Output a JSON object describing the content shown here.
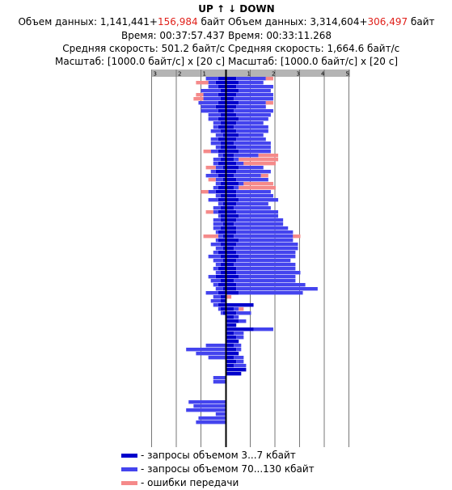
{
  "header": {
    "up_label": "UP",
    "up_arrow": "↑",
    "down_arrow": "↓",
    "down_label": "DOWN",
    "up_volume_label": "Объем данных:",
    "up_volume_value": "1,141,441+",
    "up_volume_extra": "156,984",
    "up_volume_unit": "байт",
    "down_volume_label": "Объем данных:",
    "down_volume_value": "3,314,604+",
    "down_volume_extra": "306,497",
    "down_volume_unit": "байт",
    "up_time": "Время: 00:37:57.437",
    "down_time": "Время: 00:33:11.268",
    "up_speed": "Средняя скорость: 501.2 байт/с",
    "down_speed": "Средняя скорость: 1,664.6 байт/с",
    "up_scale": "Масштаб: [1000.0 байт/с] x [20 с]",
    "down_scale": "Масштаб: [1000.0 байт/с] x [20 с]"
  },
  "legend": [
    {
      "label": "- запросы объемом 3...7 кбайт",
      "color": "#0000cc"
    },
    {
      "label": "- запросы объемом 70...130 кбайт",
      "color": "#4444ee"
    },
    {
      "label": "- ошибки передачи",
      "color": "#f58a8a"
    }
  ],
  "chart_data": {
    "type": "bar",
    "orientation": "horizontal-mirrored",
    "x_unit": "1000 байт/с",
    "y_unit": "20 с",
    "up_axis": {
      "ticks": [
        "3",
        "2",
        "1"
      ],
      "range": [
        0,
        3.5
      ]
    },
    "down_axis": {
      "ticks": [
        "1",
        "2",
        "3",
        "4",
        "5"
      ],
      "range": [
        0,
        5.5
      ]
    },
    "colors": {
      "small": "#0000cc",
      "large": "#4444ee",
      "error": "#f58a8a"
    },
    "up": [
      {
        "s": 0.3,
        "l": 0.5,
        "e": 0.0
      },
      {
        "s": 0.4,
        "l": 0.3,
        "e": 0.5
      },
      {
        "s": 0.3,
        "l": 0.4,
        "e": 0.0
      },
      {
        "s": 0.2,
        "l": 0.8,
        "e": 0.0
      },
      {
        "s": 0.3,
        "l": 0.6,
        "e": 0.3
      },
      {
        "s": 0.2,
        "l": 0.7,
        "e": 0.4
      },
      {
        "s": 0.3,
        "l": 0.8,
        "e": 0.0
      },
      {
        "s": 0.4,
        "l": 0.6,
        "e": 0.0
      },
      {
        "s": 0.3,
        "l": 0.7,
        "e": 0.0
      },
      {
        "s": 0.2,
        "l": 0.5,
        "e": 0.0
      },
      {
        "s": 0.3,
        "l": 0.4,
        "e": 0.0
      },
      {
        "s": 0.2,
        "l": 0.3,
        "e": 0.0
      },
      {
        "s": 0.3,
        "l": 0.2,
        "e": 0.0
      },
      {
        "s": 0.2,
        "l": 0.4,
        "e": 0.0
      },
      {
        "s": 0.1,
        "l": 0.3,
        "e": 0.0
      },
      {
        "s": 0.3,
        "l": 0.3,
        "e": 0.0
      },
      {
        "s": 0.2,
        "l": 0.4,
        "e": 0.0
      },
      {
        "s": 0.2,
        "l": 0.2,
        "e": 0.0
      },
      {
        "s": 0.3,
        "l": 0.3,
        "e": 0.3
      },
      {
        "s": 0.1,
        "l": 0.2,
        "e": 0.0
      },
      {
        "s": 0.2,
        "l": 0.3,
        "e": 0.0
      },
      {
        "s": 0.3,
        "l": 0.2,
        "e": 0.0
      },
      {
        "s": 0.1,
        "l": 0.3,
        "e": 0.4
      },
      {
        "s": 0.4,
        "l": 0.2,
        "e": 0.0
      },
      {
        "s": 0.3,
        "l": 0.5,
        "e": 0.0
      },
      {
        "s": 0.1,
        "l": 0.3,
        "e": 0.3
      },
      {
        "s": 0.2,
        "l": 0.2,
        "e": 0.0
      },
      {
        "s": 0.3,
        "l": 0.2,
        "e": 0.0
      },
      {
        "s": 0.4,
        "l": 0.3,
        "e": 0.3
      },
      {
        "s": 0.2,
        "l": 0.2,
        "e": 0.0
      },
      {
        "s": 0.3,
        "l": 0.4,
        "e": 0.0
      },
      {
        "s": 0.1,
        "l": 0.2,
        "e": 0.0
      },
      {
        "s": 0.2,
        "l": 0.3,
        "e": 0.0
      },
      {
        "s": 0.3,
        "l": 0.2,
        "e": 0.3
      },
      {
        "s": 0.2,
        "l": 0.1,
        "e": 0.0
      },
      {
        "s": 0.2,
        "l": 0.3,
        "e": 0.0
      },
      {
        "s": 0.1,
        "l": 0.4,
        "e": 0.0
      },
      {
        "s": 0.2,
        "l": 0.3,
        "e": 0.0
      },
      {
        "s": 0.3,
        "l": 0.1,
        "e": 0.0
      },
      {
        "s": 0.1,
        "l": 0.2,
        "e": 0.6
      },
      {
        "s": 0.3,
        "l": 0.1,
        "e": 0.0
      },
      {
        "s": 0.2,
        "l": 0.4,
        "e": 0.0
      },
      {
        "s": 0.1,
        "l": 0.3,
        "e": 0.0
      },
      {
        "s": 0.3,
        "l": 0.2,
        "e": 0.0
      },
      {
        "s": 0.2,
        "l": 0.5,
        "e": 0.0
      },
      {
        "s": 0.1,
        "l": 0.4,
        "e": 0.0
      },
      {
        "s": 0.2,
        "l": 0.2,
        "e": 0.0
      },
      {
        "s": 0.3,
        "l": 0.2,
        "e": 0.0
      },
      {
        "s": 0.2,
        "l": 0.2,
        "e": 0.0
      },
      {
        "s": 0.4,
        "l": 0.3,
        "e": 0.0
      },
      {
        "s": 0.2,
        "l": 0.4,
        "e": 0.0
      },
      {
        "s": 0.3,
        "l": 0.2,
        "e": 0.0
      },
      {
        "s": 0.1,
        "l": 0.3,
        "e": 0.0
      },
      {
        "s": 0.3,
        "l": 0.5,
        "e": 0.0
      },
      {
        "s": 0.2,
        "l": 0.3,
        "e": 0.0
      },
      {
        "s": 0.2,
        "l": 0.4,
        "e": 0.0
      },
      {
        "s": 0.3,
        "l": 0.2,
        "e": 0.0
      },
      {
        "s": 0.2,
        "l": 0.1,
        "e": 0.0
      },
      {
        "s": 0.1,
        "l": 0.1,
        "e": 0.0
      },
      {
        "s": 0.0,
        "l": 0.0,
        "e": 0.0
      },
      {
        "s": 0.0,
        "l": 0.0,
        "e": 0.0
      },
      {
        "s": 0.0,
        "l": 0.0,
        "e": 0.0
      },
      {
        "s": 0.0,
        "l": 0.0,
        "e": 0.0
      },
      {
        "s": 0.0,
        "l": 0.0,
        "e": 0.0
      },
      {
        "s": 0.0,
        "l": 0.0,
        "e": 0.0
      },
      {
        "s": 0.0,
        "l": 0.0,
        "e": 0.0
      },
      {
        "s": 0.0,
        "l": 0.8,
        "e": 0.0
      },
      {
        "s": 0.0,
        "l": 1.6,
        "e": 0.0
      },
      {
        "s": 0.0,
        "l": 1.2,
        "e": 0.0
      },
      {
        "s": 0.0,
        "l": 0.7,
        "e": 0.0
      },
      {
        "s": 0.0,
        "l": 0.0,
        "e": 0.0
      },
      {
        "s": 0.0,
        "l": 0.0,
        "e": 0.0
      },
      {
        "s": 0.0,
        "l": 0.0,
        "e": 0.0
      },
      {
        "s": 0.0,
        "l": 0.0,
        "e": 0.0
      },
      {
        "s": 0.0,
        "l": 0.5,
        "e": 0.0
      },
      {
        "s": 0.0,
        "l": 0.5,
        "e": 0.0
      },
      {
        "s": 0.0,
        "l": 0.0,
        "e": 0.0
      },
      {
        "s": 0.0,
        "l": 0.0,
        "e": 0.0
      },
      {
        "s": 0.0,
        "l": 0.0,
        "e": 0.0
      },
      {
        "s": 0.0,
        "l": 0.0,
        "e": 0.0
      },
      {
        "s": 0.0,
        "l": 1.5,
        "e": 0.0
      },
      {
        "s": 0.0,
        "l": 1.3,
        "e": 0.0
      },
      {
        "s": 0.0,
        "l": 1.6,
        "e": 0.0
      },
      {
        "s": 0.0,
        "l": 0.4,
        "e": 0.0
      },
      {
        "s": 0.0,
        "l": 1.1,
        "e": 0.0
      },
      {
        "s": 0.0,
        "l": 1.2,
        "e": 0.0
      },
      {
        "s": 0.0,
        "l": 0.0,
        "e": 0.0
      },
      {
        "s": 0.0,
        "l": 0.0,
        "e": 0.0
      }
    ],
    "down": [
      {
        "s": 0.4,
        "l": 1.2,
        "e": 0.3
      },
      {
        "s": 0.5,
        "l": 1.0,
        "e": 0.0
      },
      {
        "s": 0.4,
        "l": 1.5,
        "e": 0.0
      },
      {
        "s": 0.5,
        "l": 1.3,
        "e": 0.0
      },
      {
        "s": 0.4,
        "l": 1.5,
        "e": 0.0
      },
      {
        "s": 0.3,
        "l": 1.6,
        "e": 0.0
      },
      {
        "s": 0.5,
        "l": 1.1,
        "e": 0.3
      },
      {
        "s": 0.4,
        "l": 1.2,
        "e": 0.0
      },
      {
        "s": 0.3,
        "l": 1.6,
        "e": 0.0
      },
      {
        "s": 0.4,
        "l": 1.4,
        "e": 0.0
      },
      {
        "s": 0.5,
        "l": 1.2,
        "e": 0.0
      },
      {
        "s": 0.4,
        "l": 1.1,
        "e": 0.0
      },
      {
        "s": 0.3,
        "l": 1.4,
        "e": 0.0
      },
      {
        "s": 0.4,
        "l": 1.3,
        "e": 0.0
      },
      {
        "s": 0.5,
        "l": 1.0,
        "e": 0.0
      },
      {
        "s": 0.4,
        "l": 1.2,
        "e": 0.0
      },
      {
        "s": 0.3,
        "l": 1.5,
        "e": 0.0
      },
      {
        "s": 0.4,
        "l": 1.4,
        "e": 0.0
      },
      {
        "s": 0.5,
        "l": 1.3,
        "e": 0.0
      },
      {
        "s": 0.3,
        "l": 1.0,
        "e": 0.8
      },
      {
        "s": 0.3,
        "l": 0.2,
        "e": 1.6
      },
      {
        "s": 0.4,
        "l": 0.3,
        "e": 1.3
      },
      {
        "s": 0.5,
        "l": 1.0,
        "e": 0.0
      },
      {
        "s": 0.4,
        "l": 1.4,
        "e": 0.0
      },
      {
        "s": 0.3,
        "l": 1.1,
        "e": 0.3
      },
      {
        "s": 0.4,
        "l": 1.3,
        "e": 0.0
      },
      {
        "s": 0.5,
        "l": 0.2,
        "e": 1.2
      },
      {
        "s": 0.3,
        "l": 0.2,
        "e": 1.5
      },
      {
        "s": 0.4,
        "l": 1.4,
        "e": 0.0
      },
      {
        "s": 0.4,
        "l": 1.5,
        "e": 0.0
      },
      {
        "s": 0.5,
        "l": 1.6,
        "e": 0.0
      },
      {
        "s": 0.4,
        "l": 1.3,
        "e": 0.0
      },
      {
        "s": 0.3,
        "l": 1.5,
        "e": 0.0
      },
      {
        "s": 0.4,
        "l": 1.7,
        "e": 0.0
      },
      {
        "s": 0.5,
        "l": 1.6,
        "e": 0.0
      },
      {
        "s": 0.4,
        "l": 1.9,
        "e": 0.0
      },
      {
        "s": 0.3,
        "l": 2.0,
        "e": 0.0
      },
      {
        "s": 0.4,
        "l": 2.1,
        "e": 0.0
      },
      {
        "s": 0.4,
        "l": 2.3,
        "e": 0.0
      },
      {
        "s": 0.3,
        "l": 2.4,
        "e": 0.3
      },
      {
        "s": 0.5,
        "l": 2.2,
        "e": 0.0
      },
      {
        "s": 0.4,
        "l": 2.5,
        "e": 0.0
      },
      {
        "s": 0.3,
        "l": 2.6,
        "e": 0.0
      },
      {
        "s": 0.4,
        "l": 2.4,
        "e": 0.0
      },
      {
        "s": 0.5,
        "l": 2.3,
        "e": 0.0
      },
      {
        "s": 0.4,
        "l": 2.2,
        "e": 0.0
      },
      {
        "s": 0.3,
        "l": 2.5,
        "e": 0.0
      },
      {
        "s": 0.4,
        "l": 2.4,
        "e": 0.0
      },
      {
        "s": 0.4,
        "l": 2.6,
        "e": 0.0
      },
      {
        "s": 0.5,
        "l": 2.3,
        "e": 0.0
      },
      {
        "s": 0.3,
        "l": 2.5,
        "e": 0.0
      },
      {
        "s": 0.4,
        "l": 2.8,
        "e": 0.0
      },
      {
        "s": 0.4,
        "l": 3.3,
        "e": 0.0
      },
      {
        "s": 0.5,
        "l": 2.6,
        "e": 0.0
      },
      {
        "s": 0.0,
        "l": 0.0,
        "e": 0.2
      },
      {
        "s": 0.0,
        "l": 0.0,
        "e": 0.0
      },
      {
        "s": 1.1,
        "l": 0.0,
        "e": 0.0
      },
      {
        "s": 0.3,
        "l": 0.2,
        "e": 0.2
      },
      {
        "s": 0.4,
        "l": 0.6,
        "e": 0.0
      },
      {
        "s": 0.3,
        "l": 0.2,
        "e": 0.0
      },
      {
        "s": 0.5,
        "l": 0.3,
        "e": 0.0
      },
      {
        "s": 0.4,
        "l": 0.0,
        "e": 0.0
      },
      {
        "s": 1.1,
        "l": 0.8,
        "e": 0.0
      },
      {
        "s": 0.3,
        "l": 0.4,
        "e": 0.0
      },
      {
        "s": 0.4,
        "l": 0.3,
        "e": 0.0
      },
      {
        "s": 0.5,
        "l": 0.0,
        "e": 0.0
      },
      {
        "s": 0.3,
        "l": 0.3,
        "e": 0.0
      },
      {
        "s": 0.4,
        "l": 0.2,
        "e": 0.0
      },
      {
        "s": 0.5,
        "l": 0.0,
        "e": 0.0
      },
      {
        "s": 0.3,
        "l": 0.4,
        "e": 0.0
      },
      {
        "s": 0.4,
        "l": 0.3,
        "e": 0.0
      },
      {
        "s": 0.3,
        "l": 0.5,
        "e": 0.0
      },
      {
        "s": 0.8,
        "l": 0.0,
        "e": 0.0
      },
      {
        "s": 0.6,
        "l": 0.0,
        "e": 0.0
      },
      {
        "s": 0.0,
        "l": 0.0,
        "e": 0.0
      },
      {
        "s": 0.0,
        "l": 0.0,
        "e": 0.0
      },
      {
        "s": 0.0,
        "l": 0.0,
        "e": 0.0
      },
      {
        "s": 0.0,
        "l": 0.0,
        "e": 0.0
      },
      {
        "s": 0.0,
        "l": 0.0,
        "e": 0.0
      },
      {
        "s": 0.0,
        "l": 0.0,
        "e": 0.0
      },
      {
        "s": 0.0,
        "l": 0.0,
        "e": 0.0
      },
      {
        "s": 0.0,
        "l": 0.0,
        "e": 0.0
      },
      {
        "s": 0.0,
        "l": 0.0,
        "e": 0.0
      },
      {
        "s": 0.0,
        "l": 0.0,
        "e": 0.0
      },
      {
        "s": 0.0,
        "l": 0.0,
        "e": 0.0
      },
      {
        "s": 0.0,
        "l": 0.0,
        "e": 0.0
      },
      {
        "s": 0.0,
        "l": 0.0,
        "e": 0.0
      },
      {
        "s": 0.0,
        "l": 0.0,
        "e": 0.0
      }
    ]
  }
}
